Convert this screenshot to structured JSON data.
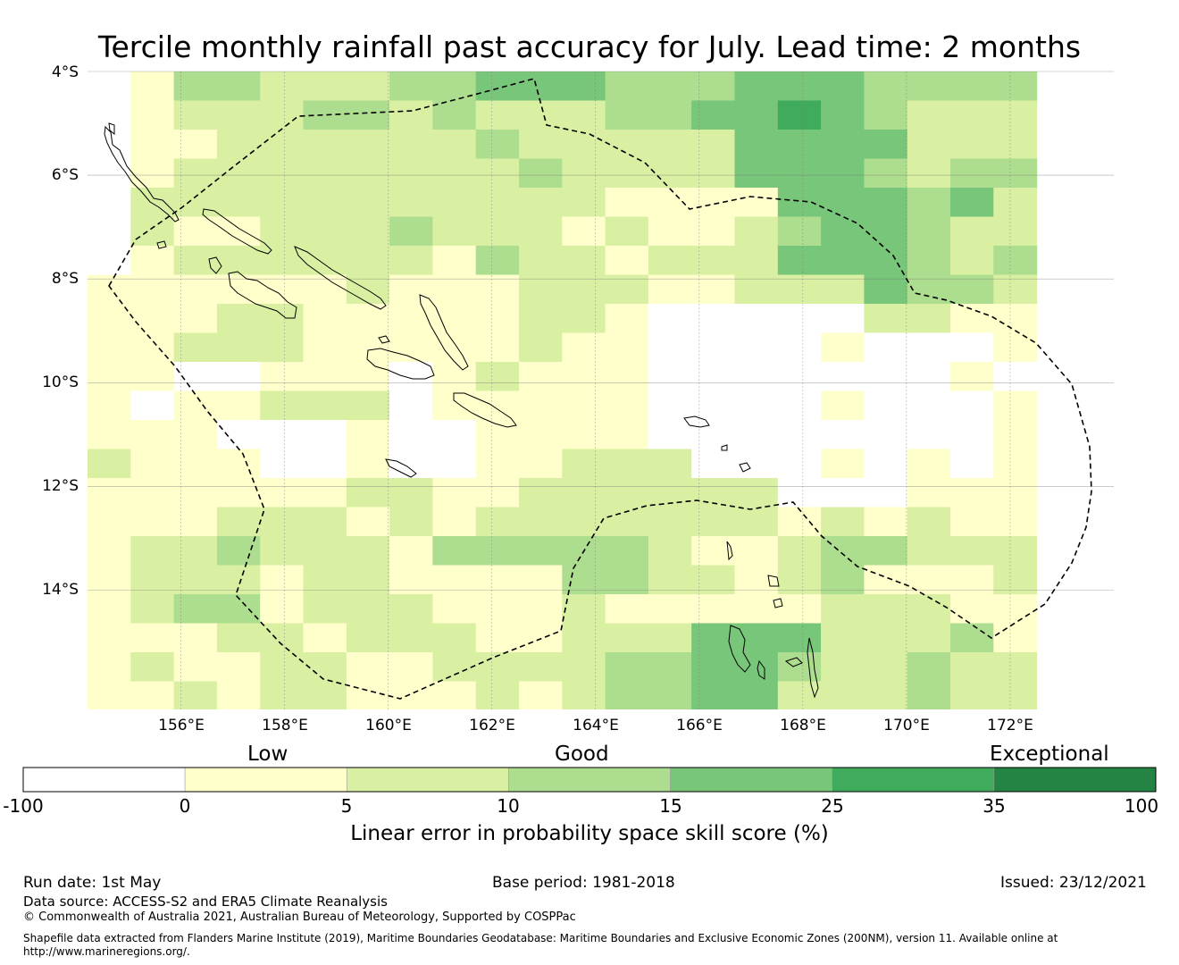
{
  "title": "Tercile monthly rainfall past accuracy for July. Lead time: 2 months",
  "axes": {
    "lat_ticks": [
      "4°S",
      "6°S",
      "8°S",
      "10°S",
      "12°S",
      "14°S"
    ],
    "lon_ticks": [
      "156°E",
      "158°E",
      "160°E",
      "162°E",
      "164°E",
      "166°E",
      "168°E",
      "170°E",
      "172°E"
    ]
  },
  "legend": {
    "categories": [
      "Low",
      "Good",
      "Exceptional"
    ],
    "ticks": [
      "-100",
      "0",
      "5",
      "10",
      "15",
      "25",
      "35",
      "100"
    ],
    "colors": [
      "#ffffff",
      "#ffffcc",
      "#d9f0a3",
      "#addd8e",
      "#78c679",
      "#41ab5d",
      "#238443"
    ],
    "title": "Linear error in probability space skill score (%)"
  },
  "chart_data": {
    "type": "heatmap",
    "lon_range": [
      154.2,
      174.0
    ],
    "lat_range": [
      -16.3,
      -4.0
    ],
    "cell_size_deg": [
      0.833,
      0.556
    ],
    "classes": [
      "-100 to 0",
      "0 to 5",
      "5 to 10",
      "10 to 15",
      "15 to 25",
      "25 to 35",
      "35 to 100"
    ],
    "grid_rows_north_to_south": [
      "0133222334443334443333",
      "0122233232223344543222",
      "0112222223222224444222",
      "0122222222322224443233",
      "0222222222221111444342",
      "0211222322212112344322",
      "0122222213221222444323",
      "1111112111222112224332",
      "1112211111221000002211",
      "1122211111211000010001",
      "1100111012111000000010",
      "1011222011111000010001",
      "1110001001111000000001",
      "2111001001122200010101",
      "1111112211222222000111",
      "1112221212222222121211",
      "1223222133333211233222",
      "1222122111133221231112",
      "1233122211121111122211",
      "1112212221122244422231",
      "1211221122223344322322",
      "1121221112123344222322",
      "1111221112222333221332",
      "1112211111223332222223",
      "1111211111222233222223",
      "1211221111223222222322",
      "1111211111222222222222",
      "1211111111121222222322"
    ]
  },
  "footer": {
    "run_date": "Run date: 1st May",
    "base_period": "Base period: 1981-2018",
    "issued": "Issued: 23/12/2021",
    "data_source": "Data source: ACCESS-S2 and ERA5 Climate Reanalysis",
    "copyright": "© Commonwealth of Australia 2021, Australian Bureau of Meteorology, Supported by COSPPac",
    "shapefile": "Shapefile data extracted from Flanders Marine Institute (2019), Maritime Boundaries Geodatabase: Maritime Boundaries and Exclusive Economic Zones (200NM), version 11. Available online at",
    "shapefile_url": "http://www.marineregions.org/."
  }
}
